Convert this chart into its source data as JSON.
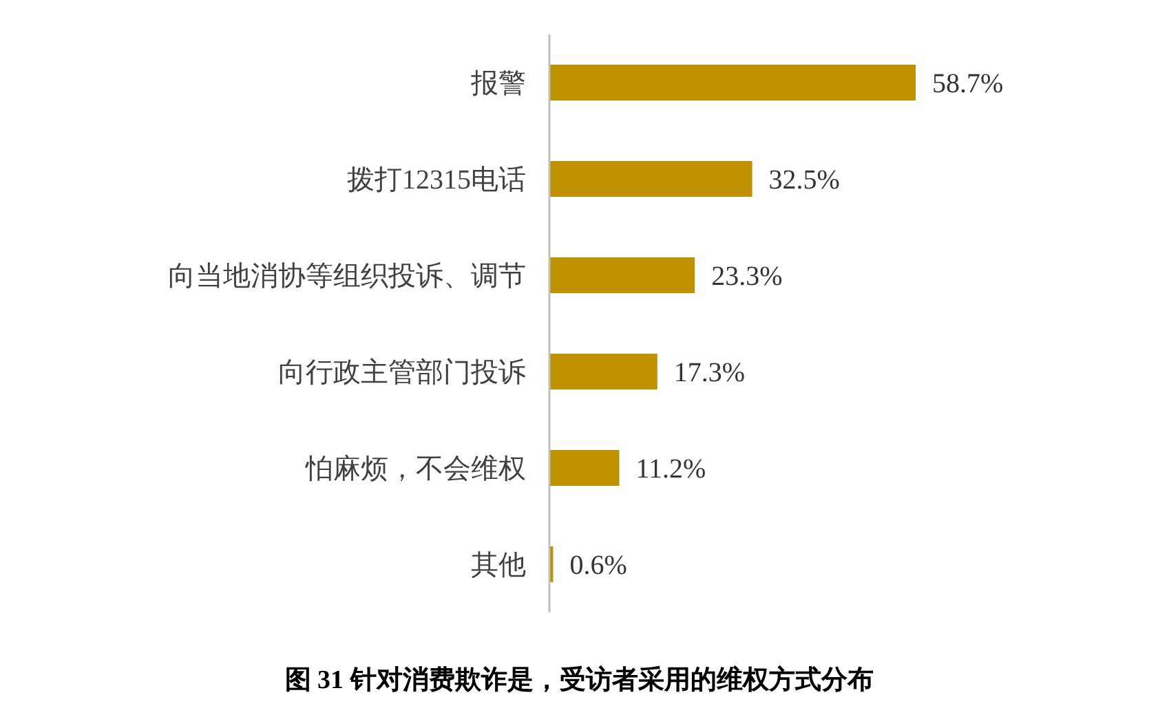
{
  "chart_data": {
    "type": "bar",
    "orientation": "horizontal",
    "title": "图 31 针对消费欺诈是，受访者采用的维权方式分布",
    "categories": [
      "报警",
      "拨打12315电话",
      "向当地消协等组织投诉、调节",
      "向行政主管部门投诉",
      "怕麻烦，不会维权",
      "其他"
    ],
    "values": [
      58.7,
      32.5,
      23.3,
      17.3,
      11.2,
      0.6
    ],
    "value_labels": [
      "58.7%",
      "32.5%",
      "23.3%",
      "17.3%",
      "11.2%",
      "0.6%"
    ],
    "color": "#bf9000"
  }
}
